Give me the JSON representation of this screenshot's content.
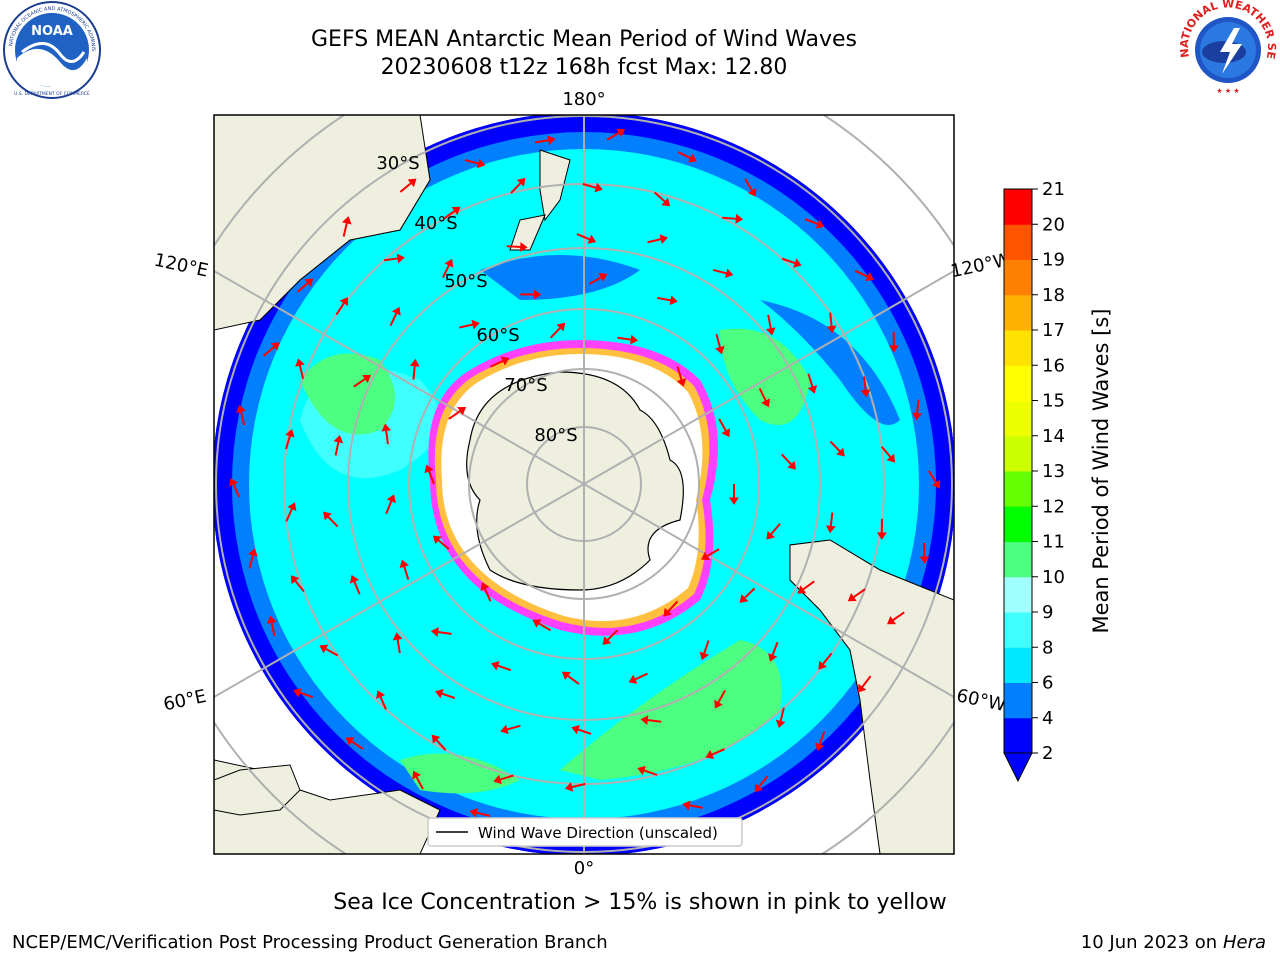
{
  "header": {
    "title_line1": "GEFS MEAN Antarctic Mean Period of Wind Waves",
    "title_line2": "20230608 t12z 168h fcst   Max: 12.80"
  },
  "logos": {
    "noaa_text": "NOAA",
    "noaa_ring_text": "NATIONAL OCEANIC AND ATMOSPHERIC ADMINISTRATION",
    "noaa_bottom_text": "U.S. DEPARTMENT OF COMMERCE",
    "nws_ring_text": "NATIONAL WEATHER SERVICE",
    "noaa_icon": "noaa-logo",
    "nws_icon": "nws-logo"
  },
  "map": {
    "projection": "south-polar-stereographic",
    "longitude_labels": {
      "top": "180°",
      "bottom": "0°",
      "upper_left": "120°E",
      "upper_right": "120°W",
      "lower_left": "60°E",
      "lower_right": "60°W"
    },
    "latitude_labels": [
      "30°S",
      "40°S",
      "50°S",
      "60°S",
      "70°S",
      "80°S"
    ],
    "legend_label": "Wind Wave Direction (unscaled)",
    "colors": {
      "land": "#efefe0",
      "deep_blue": "#0000ff",
      "mid_blue": "#0080ff",
      "cyan": "#00ffff",
      "light_cyan": "#40ffff",
      "green": "#4dff80",
      "ice_pink": "#ff40ff",
      "ice_yellow": "#ffc040",
      "arrow": "#ff0000",
      "grid": "#b0b0b0"
    }
  },
  "colorbar": {
    "label": "Mean Period of Wind Waves [s]",
    "ticks": [
      "2",
      "4",
      "6",
      "8",
      "9",
      "10",
      "11",
      "12",
      "13",
      "14",
      "15",
      "16",
      "17",
      "18",
      "19",
      "20",
      "21"
    ],
    "colors": [
      "#0000ff",
      "#0080ff",
      "#00e8ff",
      "#40ffff",
      "#a0ffff",
      "#4dff80",
      "#00ff00",
      "#66ff00",
      "#ccff00",
      "#eeff00",
      "#ffff00",
      "#ffe000",
      "#ffb000",
      "#ff8000",
      "#ff5500",
      "#ff0000"
    ],
    "extend_color": "#0000ff"
  },
  "footer": {
    "note": "Sea Ice Concentration > 15% is shown in pink to yellow",
    "left": "NCEP/EMC/Verification Post Processing Product Generation Branch",
    "right_date": "10 Jun 2023 on",
    "right_host": "Hera"
  }
}
